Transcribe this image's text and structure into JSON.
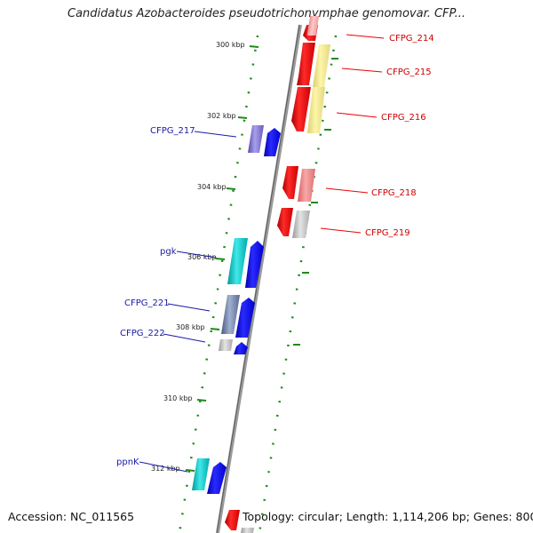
{
  "title": "Candidatus Azobacteroides pseudotrichonymphae genomovar. CFP...",
  "footer": {
    "accession": "Accession: NC_011565",
    "topology": "Topology: circular; Length: 1,114,206 bp; Genes: 800"
  },
  "colors": {
    "backbone": "#8a8a8a",
    "tick": "#1e8a1e",
    "forward_gene": "#0000ee",
    "reverse_gene": "#ee0000",
    "label_reverse": "#cc0000",
    "label_forward": "#1a1aa8"
  },
  "ticks": [
    "300 kbp",
    "302 kbp",
    "304 kbp",
    "306 kbp",
    "308 kbp",
    "310 kbp",
    "312 kbp"
  ],
  "gene_labels_right": [
    "CFPG_214",
    "CFPG_215",
    "CFPG_216",
    "CFPG_218",
    "CFPG_219"
  ],
  "gene_labels_left": [
    "CFPG_217",
    "pgk",
    "CFPG_221",
    "CFPG_222",
    "ppnK"
  ]
}
